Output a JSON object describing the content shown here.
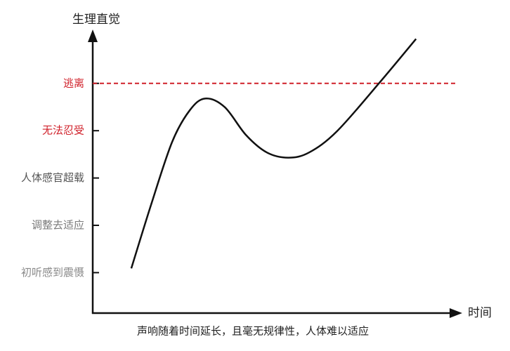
{
  "chart_data": {
    "type": "line",
    "y_label": "生理直觉",
    "x_label": "时间",
    "caption": "声响随着时间延长，且毫无规律性，人体难以适应",
    "xlim": [
      0,
      10
    ],
    "ylim": [
      0.16,
      6.05
    ],
    "yticks": [
      {
        "value": 1,
        "label": "初听感到震慑",
        "color": "#8a8a8a"
      },
      {
        "value": 2,
        "label": "调整去适应",
        "color": "#7a7a7a"
      },
      {
        "value": 3,
        "label": "人体感官超载",
        "color": "#555555"
      },
      {
        "value": 4,
        "label": "无法忍受",
        "color": "#d0202a"
      },
      {
        "value": 5,
        "label": "逃离",
        "color": "#d0202a"
      }
    ],
    "threshold": 5,
    "threshold_color": "#d0202a",
    "series": [
      {
        "color": "#111111",
        "x": [
          1.05,
          1.59,
          2.16,
          2.64,
          3.06,
          3.59,
          4.17,
          4.74,
          5.32,
          5.89,
          6.65,
          7.8,
          8.8
        ],
        "values": [
          1.09,
          2.44,
          3.76,
          4.43,
          4.68,
          4.5,
          3.91,
          3.54,
          3.43,
          3.54,
          3.99,
          5.01,
          5.94
        ]
      }
    ]
  }
}
